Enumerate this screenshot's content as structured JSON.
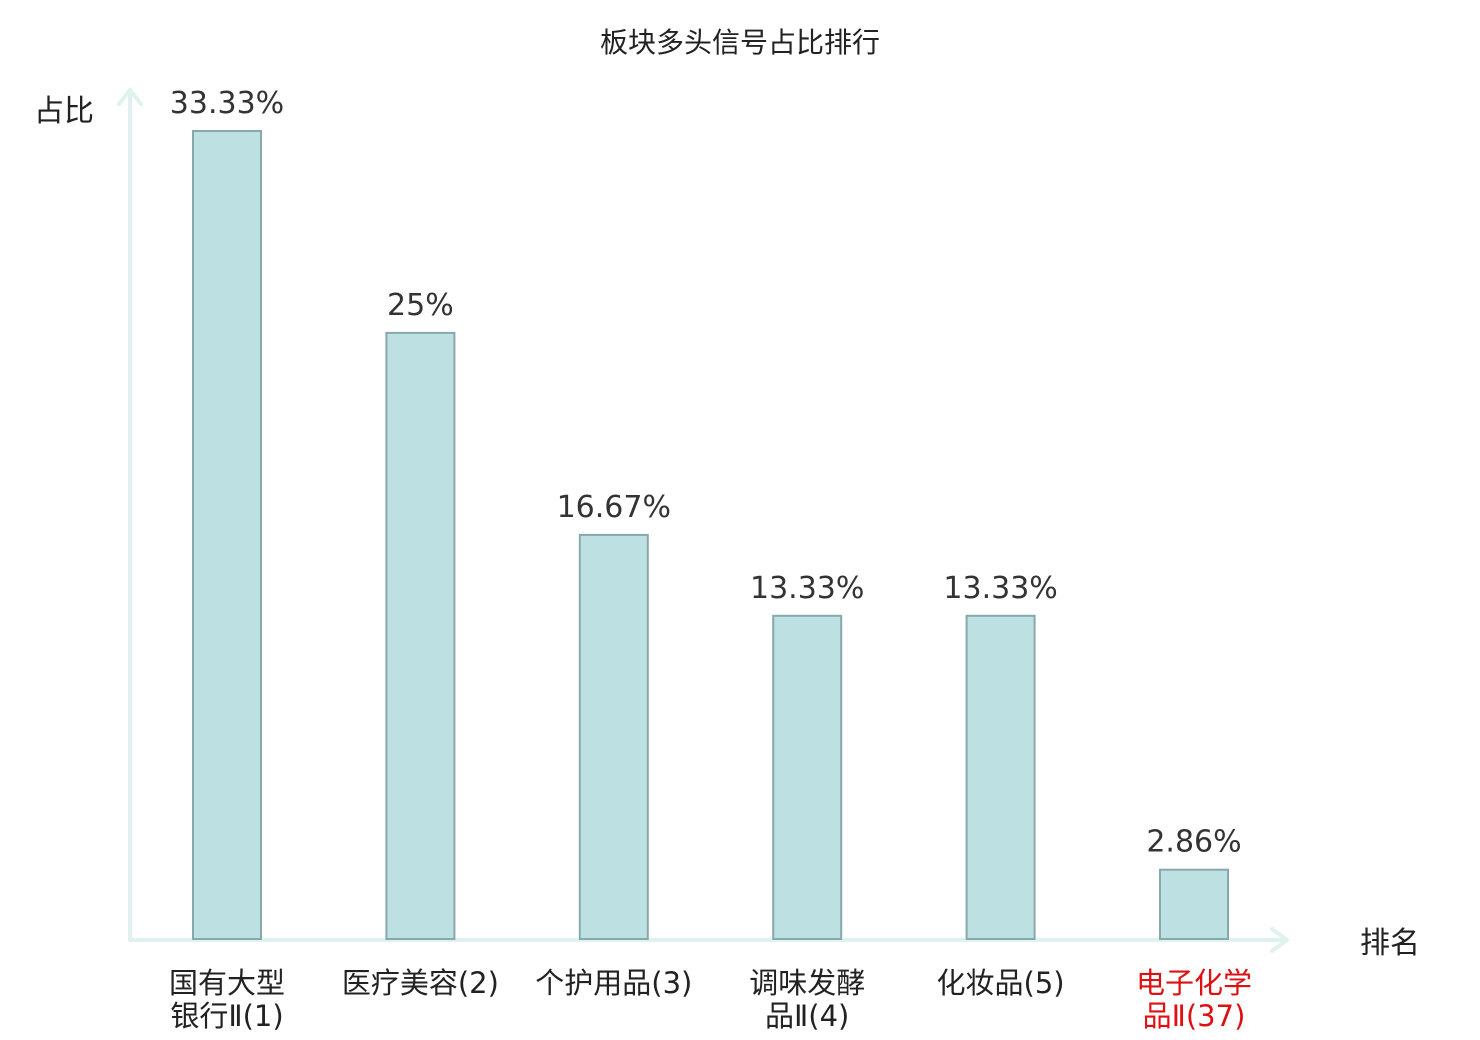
{
  "chart_data": {
    "type": "bar",
    "title": "板块多头信号占比排行",
    "xlabel": "排名",
    "ylabel": "占比",
    "categories": [
      [
        "国有大型",
        "银行Ⅱ(1)"
      ],
      [
        "医疗美容(2)"
      ],
      [
        "个护用品(3)"
      ],
      [
        "调味发酵",
        "品Ⅱ(4)"
      ],
      [
        "化妆品(5)"
      ],
      [
        "电子化学",
        "品Ⅱ(37)"
      ]
    ],
    "values": [
      33.33,
      25,
      16.67,
      13.33,
      13.33,
      2.86
    ],
    "value_labels": [
      "33.33%",
      "25%",
      "16.67%",
      "13.33%",
      "13.33%",
      "2.86%"
    ],
    "highlight_index": 5,
    "ylim": [
      0,
      33.33
    ],
    "grid": false,
    "colors": {
      "bar_fill": "#bde0e3",
      "bar_stroke": "#88a8ab",
      "axis": "#dff2ef",
      "highlight_label": "#dd1111",
      "label": "#222222"
    }
  }
}
